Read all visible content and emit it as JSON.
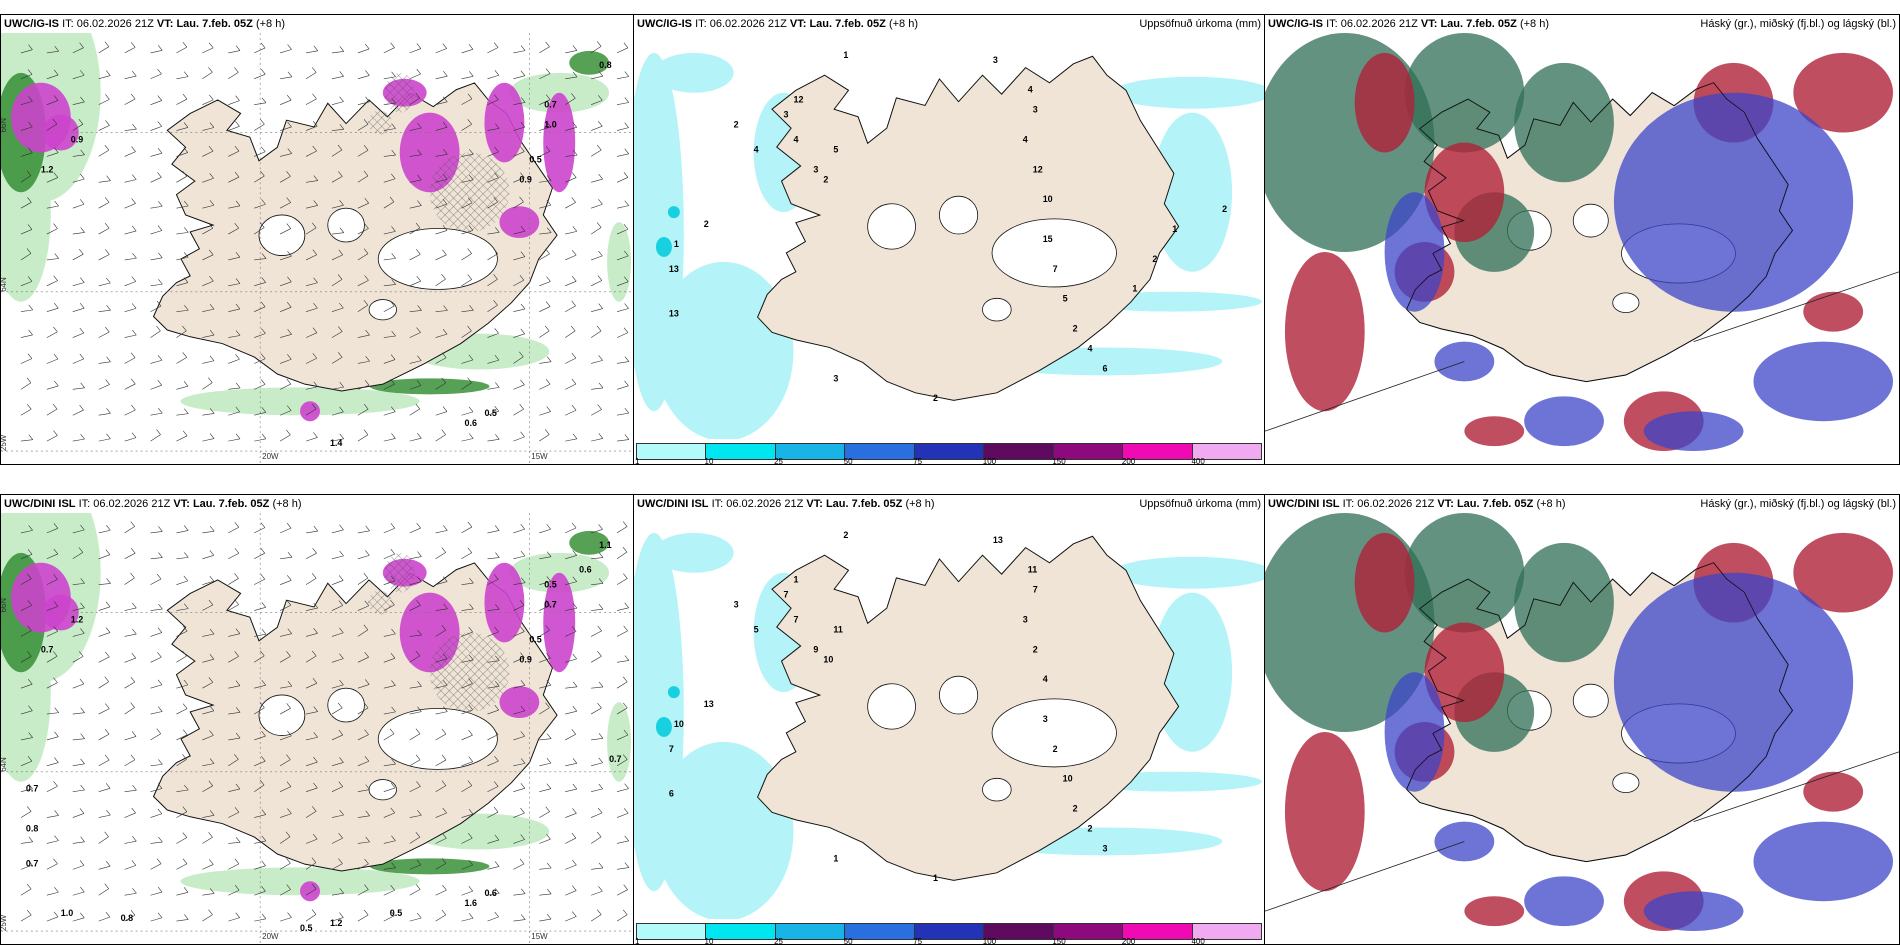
{
  "panels": [
    {
      "id": "tl",
      "model": "UWC/IG-IS",
      "it_label": "IT:",
      "it": "06.02.2026 21Z",
      "vt_label": "VT:",
      "vt": "Lau. 7.feb. 05Z",
      "lead": "(+8 h)",
      "right_title": "",
      "type": "wind",
      "values": [
        "0.7",
        "1.0",
        "0.5",
        "0.9",
        "0.8",
        "0.6",
        "0.5",
        "1.4",
        "1.2",
        "0.9"
      ],
      "axis_labels": [
        "66N",
        "64N",
        "25W",
        "20W",
        "15W"
      ]
    },
    {
      "id": "tm",
      "model": "UWC/IG-IS",
      "it_label": "IT:",
      "it": "06.02.2026 21Z",
      "vt_label": "VT:",
      "vt": "Lau. 7.feb. 05Z",
      "lead": "(+8 h)",
      "right_title": "Uppsöfnuð úrkoma (mm)",
      "type": "precip",
      "values": [
        "1",
        "2",
        "4",
        "3",
        "4",
        "3",
        "2",
        "1",
        "13",
        "13",
        "12",
        "5",
        "2",
        "3",
        "4",
        "3",
        "4",
        "12",
        "10",
        "15",
        "7",
        "5",
        "2",
        "4",
        "6",
        "3",
        "2",
        "1",
        "2",
        "1",
        "2"
      ]
    },
    {
      "id": "tr",
      "model": "UWC/IG-IS",
      "it_label": "IT:",
      "it": "06.02.2026 21Z",
      "vt_label": "VT:",
      "vt": "Lau. 7.feb. 05Z",
      "lead": "(+8 h)",
      "right_title": "Háský (gr.), miðský (fj.bl.) og lágský (bl.)",
      "type": "cloud"
    },
    {
      "id": "bl",
      "model": "UWC/DINI ISL",
      "it_label": "IT:",
      "it": "06.02.2026 21Z",
      "vt_label": "VT:",
      "vt": "Lau. 7.feb. 05Z",
      "lead": "(+8 h)",
      "right_title": "",
      "type": "wind",
      "values": [
        "0.5",
        "0.7",
        "0.5",
        "0.9",
        "1.1",
        "1.6",
        "0.6",
        "1.2",
        "0.7",
        "1.2",
        "0.6",
        "0.7",
        "0.7",
        "0.8",
        "0.7",
        "1.0",
        "0.8",
        "0.5",
        "0.5"
      ],
      "axis_labels": [
        "66N",
        "64N",
        "25W",
        "20W",
        "15W"
      ]
    },
    {
      "id": "bm",
      "model": "UWC/DINI ISL",
      "it_label": "IT:",
      "it": "06.02.2026 21Z",
      "vt_label": "VT:",
      "vt": "Lau. 7.feb. 05Z",
      "lead": "(+8 h)",
      "right_title": "Uppsöfnuð úrkoma (mm)",
      "type": "precip",
      "values": [
        "2",
        "3",
        "5",
        "7",
        "7",
        "9",
        "13",
        "10",
        "7",
        "6",
        "1",
        "11",
        "10",
        "13",
        "11",
        "7",
        "3",
        "2",
        "4",
        "3",
        "2",
        "10",
        "2",
        "2",
        "3",
        "1",
        "1"
      ]
    },
    {
      "id": "br",
      "model": "UWC/DINI ISL",
      "it_label": "IT:",
      "it": "06.02.2026 21Z",
      "vt_label": "VT:",
      "vt": "Lau. 7.feb. 05Z",
      "lead": "(+8 h)",
      "right_title": "Háský (gr.), miðský (fj.bl.) og lágský (bl.)",
      "type": "cloud"
    }
  ],
  "colorbar": {
    "ticks": [
      "1",
      "10",
      "25",
      "50",
      "75",
      "100",
      "150",
      "200",
      "400"
    ],
    "colors": [
      "#b3fafa",
      "#00e6f0",
      "#18b4e6",
      "#2a6fe0",
      "#2233b8",
      "#5e0a5e",
      "#8c0a7c",
      "#f00ab4",
      "#f0aaf0"
    ]
  },
  "colors": {
    "land": "#efe4d6",
    "snow": "#ffffff",
    "precip_light": "#b4f4f8",
    "wind_green": "#2c8a2c",
    "wind_light": "#c8ecc8",
    "magenta": "#cc44cc",
    "high_cloud": "#2f6f55",
    "mid_cloud": "#b0223a",
    "low_cloud": "#3c46c8"
  }
}
